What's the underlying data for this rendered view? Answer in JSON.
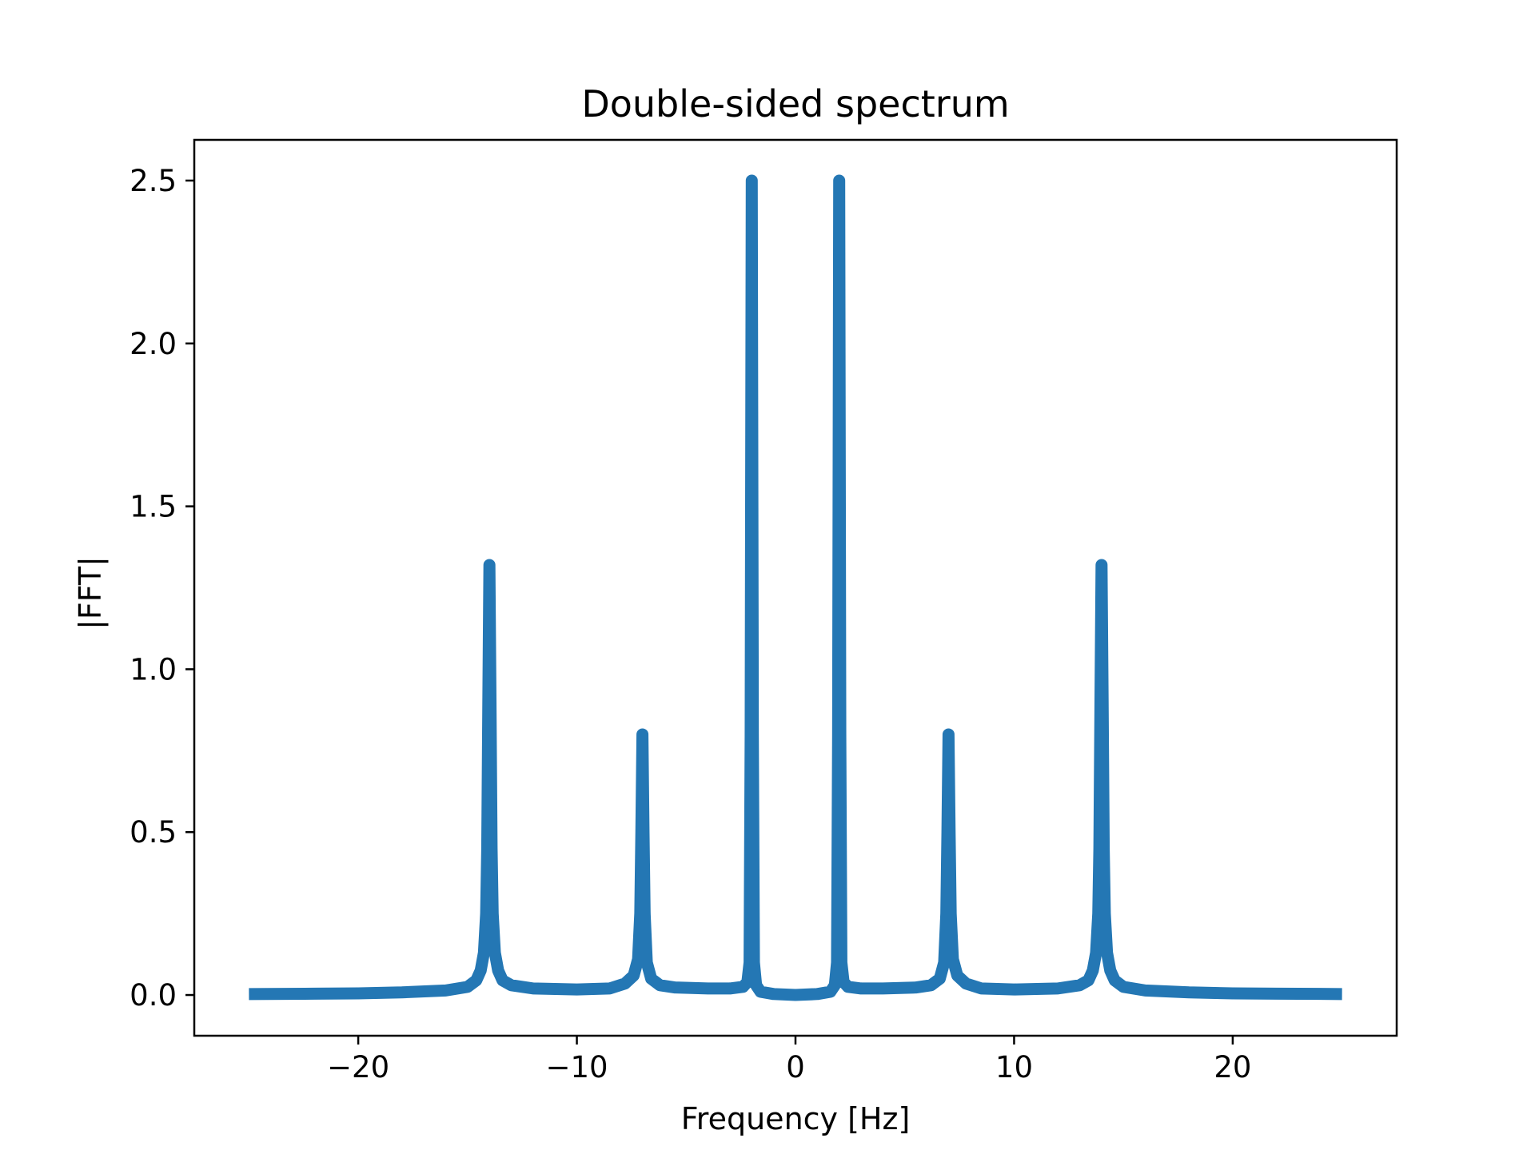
{
  "chart_data": {
    "type": "line",
    "title": "Double-sided spectrum",
    "xlabel": "Frequency [Hz]",
    "ylabel": "|FFT|",
    "xlim": [
      -27.5,
      27.5
    ],
    "ylim": [
      -0.125,
      2.625
    ],
    "xticks": [
      -20,
      -10,
      0,
      10,
      20
    ],
    "xtick_labels": [
      "−20",
      "−10",
      "0",
      "10",
      "20"
    ],
    "yticks": [
      0.0,
      0.5,
      1.0,
      1.5,
      2.0,
      2.5
    ],
    "ytick_labels": [
      "0.0",
      "0.5",
      "1.0",
      "1.5",
      "2.0",
      "2.5"
    ],
    "grid": false,
    "legend": "none",
    "series": [
      {
        "color": "#2477b4",
        "x": [
          -25.0,
          -22.0,
          -20.0,
          -18.0,
          -16.0,
          -15.0,
          -14.6,
          -14.4,
          -14.25,
          -14.15,
          -14.1,
          -14.05,
          -14.0,
          -13.95,
          -13.9,
          -13.85,
          -13.75,
          -13.6,
          -13.4,
          -13.0,
          -12.0,
          -10.0,
          -8.5,
          -7.8,
          -7.4,
          -7.2,
          -7.1,
          -7.05,
          -7.0,
          -6.95,
          -6.9,
          -6.8,
          -6.6,
          -6.2,
          -5.5,
          -4.0,
          -3.0,
          -2.4,
          -2.2,
          -2.1,
          -2.05,
          -2.0,
          -1.95,
          -1.9,
          -1.8,
          -1.6,
          -1.0,
          0.0,
          1.0,
          1.6,
          1.8,
          1.9,
          1.95,
          2.0,
          2.05,
          2.1,
          2.2,
          2.4,
          3.0,
          4.0,
          5.5,
          6.2,
          6.6,
          6.8,
          6.9,
          6.95,
          7.0,
          7.05,
          7.1,
          7.2,
          7.4,
          7.8,
          8.5,
          10.0,
          12.0,
          13.0,
          13.4,
          13.6,
          13.75,
          13.85,
          13.9,
          13.95,
          14.0,
          14.05,
          14.1,
          14.15,
          14.25,
          14.4,
          14.6,
          15.0,
          16.0,
          18.0,
          20.0,
          22.0,
          25.0
        ],
        "values": [
          0.003,
          0.004,
          0.005,
          0.008,
          0.014,
          0.025,
          0.045,
          0.075,
          0.13,
          0.25,
          0.45,
          0.9,
          1.32,
          0.9,
          0.45,
          0.25,
          0.13,
          0.075,
          0.045,
          0.03,
          0.02,
          0.017,
          0.02,
          0.035,
          0.06,
          0.11,
          0.25,
          0.5,
          0.8,
          0.5,
          0.25,
          0.1,
          0.05,
          0.03,
          0.023,
          0.02,
          0.02,
          0.025,
          0.04,
          0.1,
          0.8,
          2.5,
          0.8,
          0.1,
          0.03,
          0.01,
          0.003,
          0.0,
          0.003,
          0.01,
          0.03,
          0.1,
          0.8,
          2.5,
          0.8,
          0.1,
          0.04,
          0.025,
          0.02,
          0.02,
          0.023,
          0.03,
          0.05,
          0.1,
          0.25,
          0.5,
          0.8,
          0.5,
          0.25,
          0.11,
          0.06,
          0.035,
          0.02,
          0.017,
          0.02,
          0.03,
          0.045,
          0.075,
          0.13,
          0.25,
          0.45,
          0.9,
          1.32,
          0.9,
          0.45,
          0.25,
          0.13,
          0.075,
          0.045,
          0.025,
          0.014,
          0.008,
          0.005,
          0.004,
          0.003
        ]
      }
    ]
  }
}
